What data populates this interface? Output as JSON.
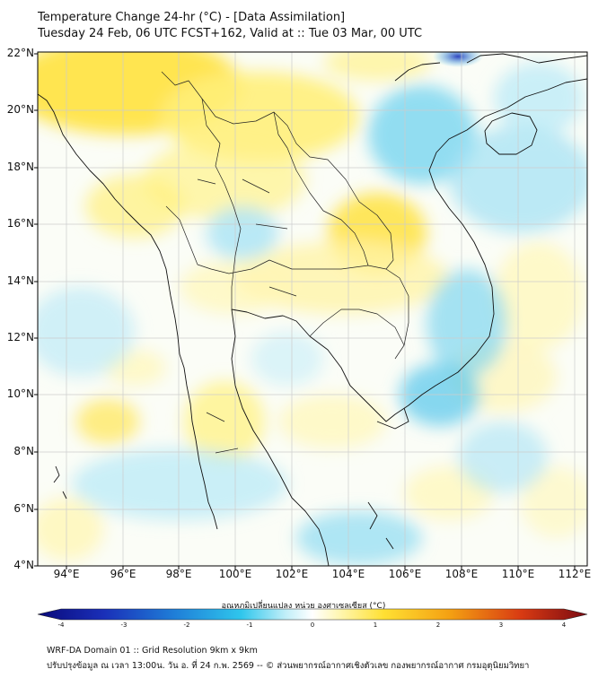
{
  "title": {
    "line1": "Temperature Change 24-hr (°C) - [Data Assimilation]",
    "line2": "Tuesday 24 Feb, 06 UTC FCST+162, Valid at :: Tue 03 Mar, 00 UTC"
  },
  "map": {
    "lat_labels": [
      "22°N",
      "20°N",
      "18°N",
      "16°N",
      "14°N",
      "12°N",
      "10°N",
      "8°N",
      "6°N",
      "4°N"
    ],
    "lon_labels": [
      "94°E",
      "96°E",
      "98°E",
      "100°E",
      "102°E",
      "104°E",
      "106°E",
      "108°E",
      "110°E",
      "112°E"
    ],
    "colors": {
      "strong_negative": "#1a2fb8",
      "negative": "#2fb6e6",
      "neutral": "#ffffff",
      "positive": "#ffe033",
      "strong_positive": "#b8121c",
      "border": "#111111",
      "grid": "#cccccc"
    }
  },
  "colorbar": {
    "title": "อุณหภูมิเปลี่ยนแปลง หน่วย องศาเซลเซียส (°C)",
    "ticks": [
      "-4",
      "-3",
      "-2",
      "-1",
      "0",
      "1",
      "2",
      "3",
      "4"
    ]
  },
  "footer": {
    "line1": "WRF-DA Domain 01 :: Grid Resolution 9km x 9km",
    "line2": "ปรับปรุงข้อมูล ณ เวลา 13:00น. วัน อ. ที่ 24 ก.พ. 2569 -- © ส่วนพยากรณ์อากาศเชิงตัวเลข กองพยากรณ์อากาศ กรมอุตุนิยมวิทยา"
  }
}
